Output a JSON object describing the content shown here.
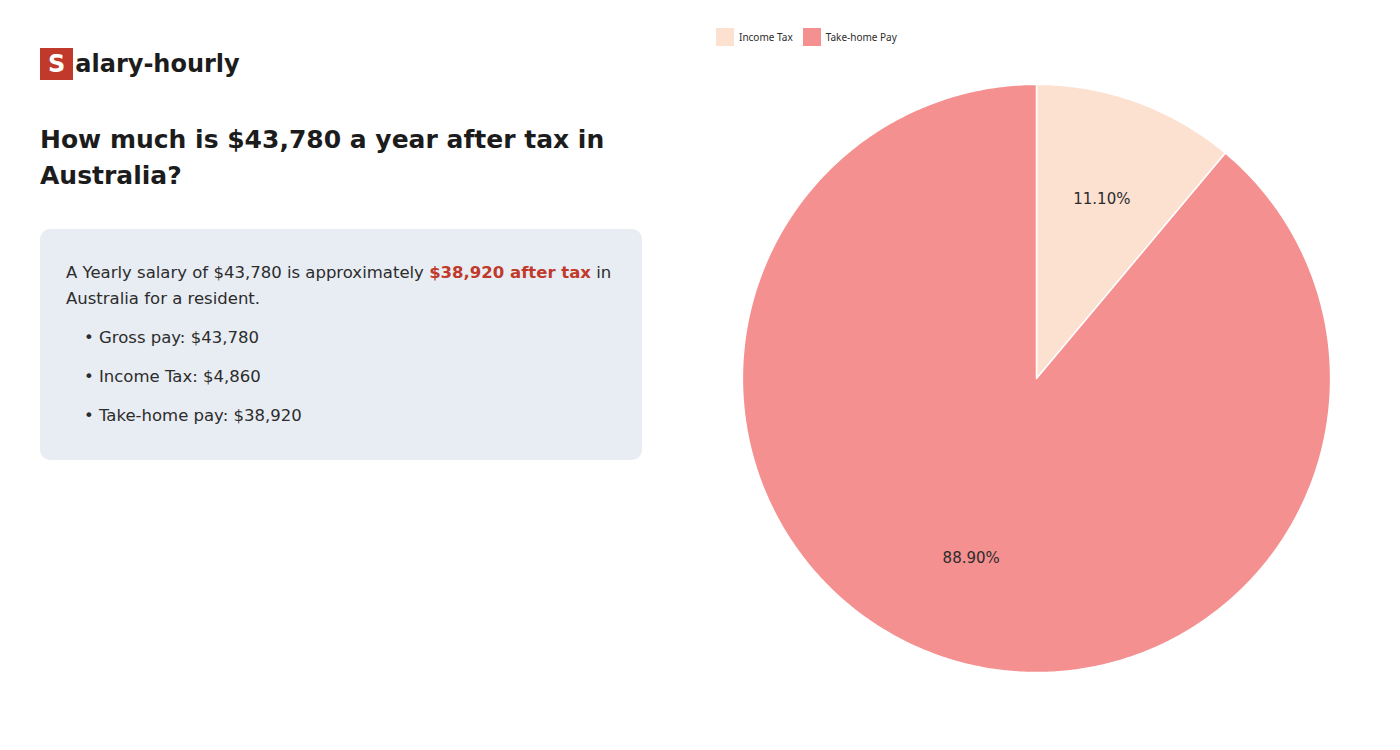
{
  "chart_data": {
    "type": "pie",
    "title": "How much is $43,780 a year after tax in\nAustralia?",
    "annotations": [
      [
        {
          "text": "S",
          "color": "#c0392b"
        },
        {
          "text": "alary-hourly"
        }
      ],
      [
        {
          "text": "A Yearly salary of $43,780 is approximately "
        },
        {
          "text": "$38,920 after tax",
          "color": "#c0392b"
        },
        {
          "text": " in"
        }
      ],
      [
        {
          "text": "Australia for a resident."
        }
      ],
      [
        {
          "text": "• Gross pay: $43,780"
        }
      ],
      [
        {
          "text": "• Income Tax: $4,860"
        }
      ],
      [
        {
          "text": "• Take-home pay: $38,920"
        }
      ]
    ],
    "categories": [
      "Income Tax",
      "Take-home Pay"
    ],
    "values": [
      11.1,
      88.9
    ],
    "value_labels": [
      "11.10%",
      "88.90%"
    ],
    "colors": [
      "#fce0d0",
      "#f59090"
    ],
    "data_labels": true,
    "legend": "top"
  }
}
